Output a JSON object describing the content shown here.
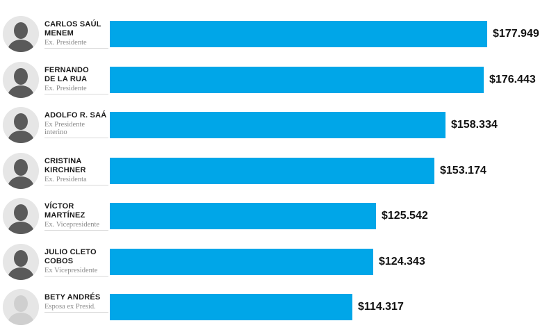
{
  "chart_data": {
    "type": "bar",
    "orientation": "horizontal",
    "categories": [
      "CARLOS SAÚL MENEM",
      "FERNANDO DE LA RUA",
      "ADOLFO R. SAÁ",
      "CRISTINA KIRCHNER",
      "VÍCTOR MARTÍNEZ",
      "JULIO CLETO COBOS",
      "BETY ANDRÉS"
    ],
    "values": [
      177949,
      176443,
      158334,
      153174,
      125542,
      124343,
      114317
    ],
    "title": "",
    "xlabel": "",
    "ylabel": "",
    "grid": false,
    "legend": "none"
  },
  "rows": [
    {
      "name_lines": [
        "CARLOS SAÚL",
        "MENEM"
      ],
      "role_lines": [
        "Ex. Presidente"
      ],
      "value_label": "$177.949",
      "avatar_icon": "portrait-photo"
    },
    {
      "name_lines": [
        "FERNANDO",
        "DE LA RUA"
      ],
      "role_lines": [
        "Ex. Presidente"
      ],
      "value_label": "$176.443",
      "avatar_icon": "portrait-photo"
    },
    {
      "name_lines": [
        "ADOLFO R. SAÁ"
      ],
      "role_lines": [
        "Ex Presidente",
        "interino"
      ],
      "value_label": "$158.334",
      "avatar_icon": "portrait-photo"
    },
    {
      "name_lines": [
        "CRISTINA",
        "KIRCHNER"
      ],
      "role_lines": [
        "Ex. Presidenta"
      ],
      "value_label": "$153.174",
      "avatar_icon": "portrait-photo"
    },
    {
      "name_lines": [
        "VÍCTOR",
        "MARTÍNEZ"
      ],
      "role_lines": [
        "Ex. Vicepresidente"
      ],
      "value_label": "$125.542",
      "avatar_icon": "portrait-photo"
    },
    {
      "name_lines": [
        "JULIO CLETO",
        "COBOS"
      ],
      "role_lines": [
        "Ex Vicepresidente"
      ],
      "value_label": "$124.343",
      "avatar_icon": "portrait-photo"
    },
    {
      "name_lines": [
        "BETY ANDRÉS"
      ],
      "role_lines": [
        "Esposa ex Presid."
      ],
      "value_label": "$114.317",
      "avatar_icon": "portrait-placeholder"
    }
  ],
  "colors": {
    "bar": "#00a6e8",
    "avatar_bg": "#e6e6e6",
    "avatar_figure": "#5a5a5a",
    "avatar_placeholder_figure": "#cfcfcf"
  }
}
